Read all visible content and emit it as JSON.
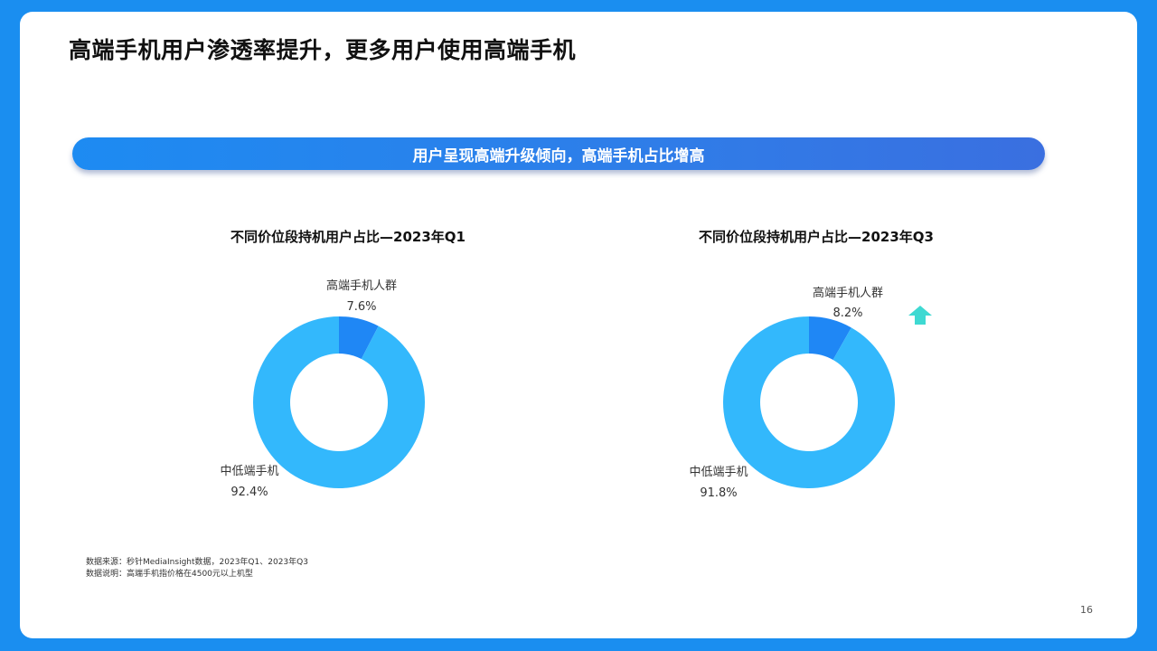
{
  "page": {
    "title": "高端手机用户渗透率提升，更多用户使用高端手机",
    "banner": "用户呈现高端升级倾向，高端手机占比增高",
    "footnotes": [
      "数据来源：秒针MediaInsight数据，2023年Q1、2023年Q3",
      "数据说明：高端手机指价格在4500元以上机型"
    ],
    "page_number": "16"
  },
  "colors": {
    "high_end": "#1f87f5",
    "mid_low": "#33b8fc",
    "arrow": "#3ed9d2"
  },
  "chart_data": [
    {
      "type": "pie",
      "donut": true,
      "title": "不同价位段持机用户占比—2023年Q1",
      "categories": [
        "高端手机人群",
        "中低端手机"
      ],
      "values": [
        7.6,
        92.4
      ],
      "value_labels": [
        "7.6%",
        "92.4%"
      ]
    },
    {
      "type": "pie",
      "donut": true,
      "title": "不同价位段持机用户占比—2023年Q3",
      "categories": [
        "高端手机人群",
        "中低端手机"
      ],
      "values": [
        8.2,
        91.8
      ],
      "value_labels": [
        "8.2%",
        "91.8%"
      ],
      "annotation": "up-arrow-icon"
    }
  ]
}
